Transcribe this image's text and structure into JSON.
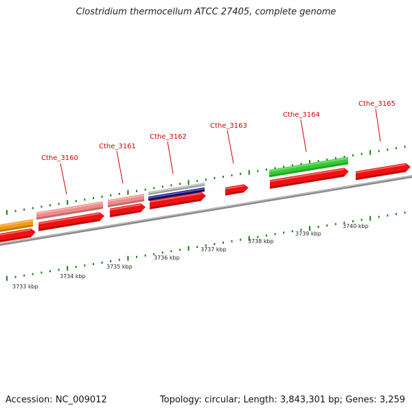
{
  "title": "Clostridium thermocellum ATCC 27405, complete genome",
  "footer": {
    "accession": "Accession: NC_009012",
    "summary": "Topology: circular; Length: 3,843,301 bp; Genes: 3,259"
  },
  "colors": {
    "backbone": "#8a8a8a",
    "cds_red": "#ee1111",
    "pink": "#ef8a8a",
    "orange": "#f59a10",
    "green": "#33cc33",
    "navy": "#0b0b80",
    "gray_feature": "#bbbbbb",
    "tick_green": "#1d7a1d",
    "label_red": "#cc0000"
  },
  "gene_labels": [
    "Cthe_3160",
    "Cthe_3161",
    "Cthe_3162",
    "Cthe_3163",
    "Cthe_3164",
    "Cthe_3165"
  ],
  "scale_labels": [
    "3733 kbp",
    "3734 kbp",
    "3735 kbp",
    "3736 kbp",
    "3737 kbp",
    "3738 kbp",
    "3739 kbp",
    "3740 kbp"
  ]
}
